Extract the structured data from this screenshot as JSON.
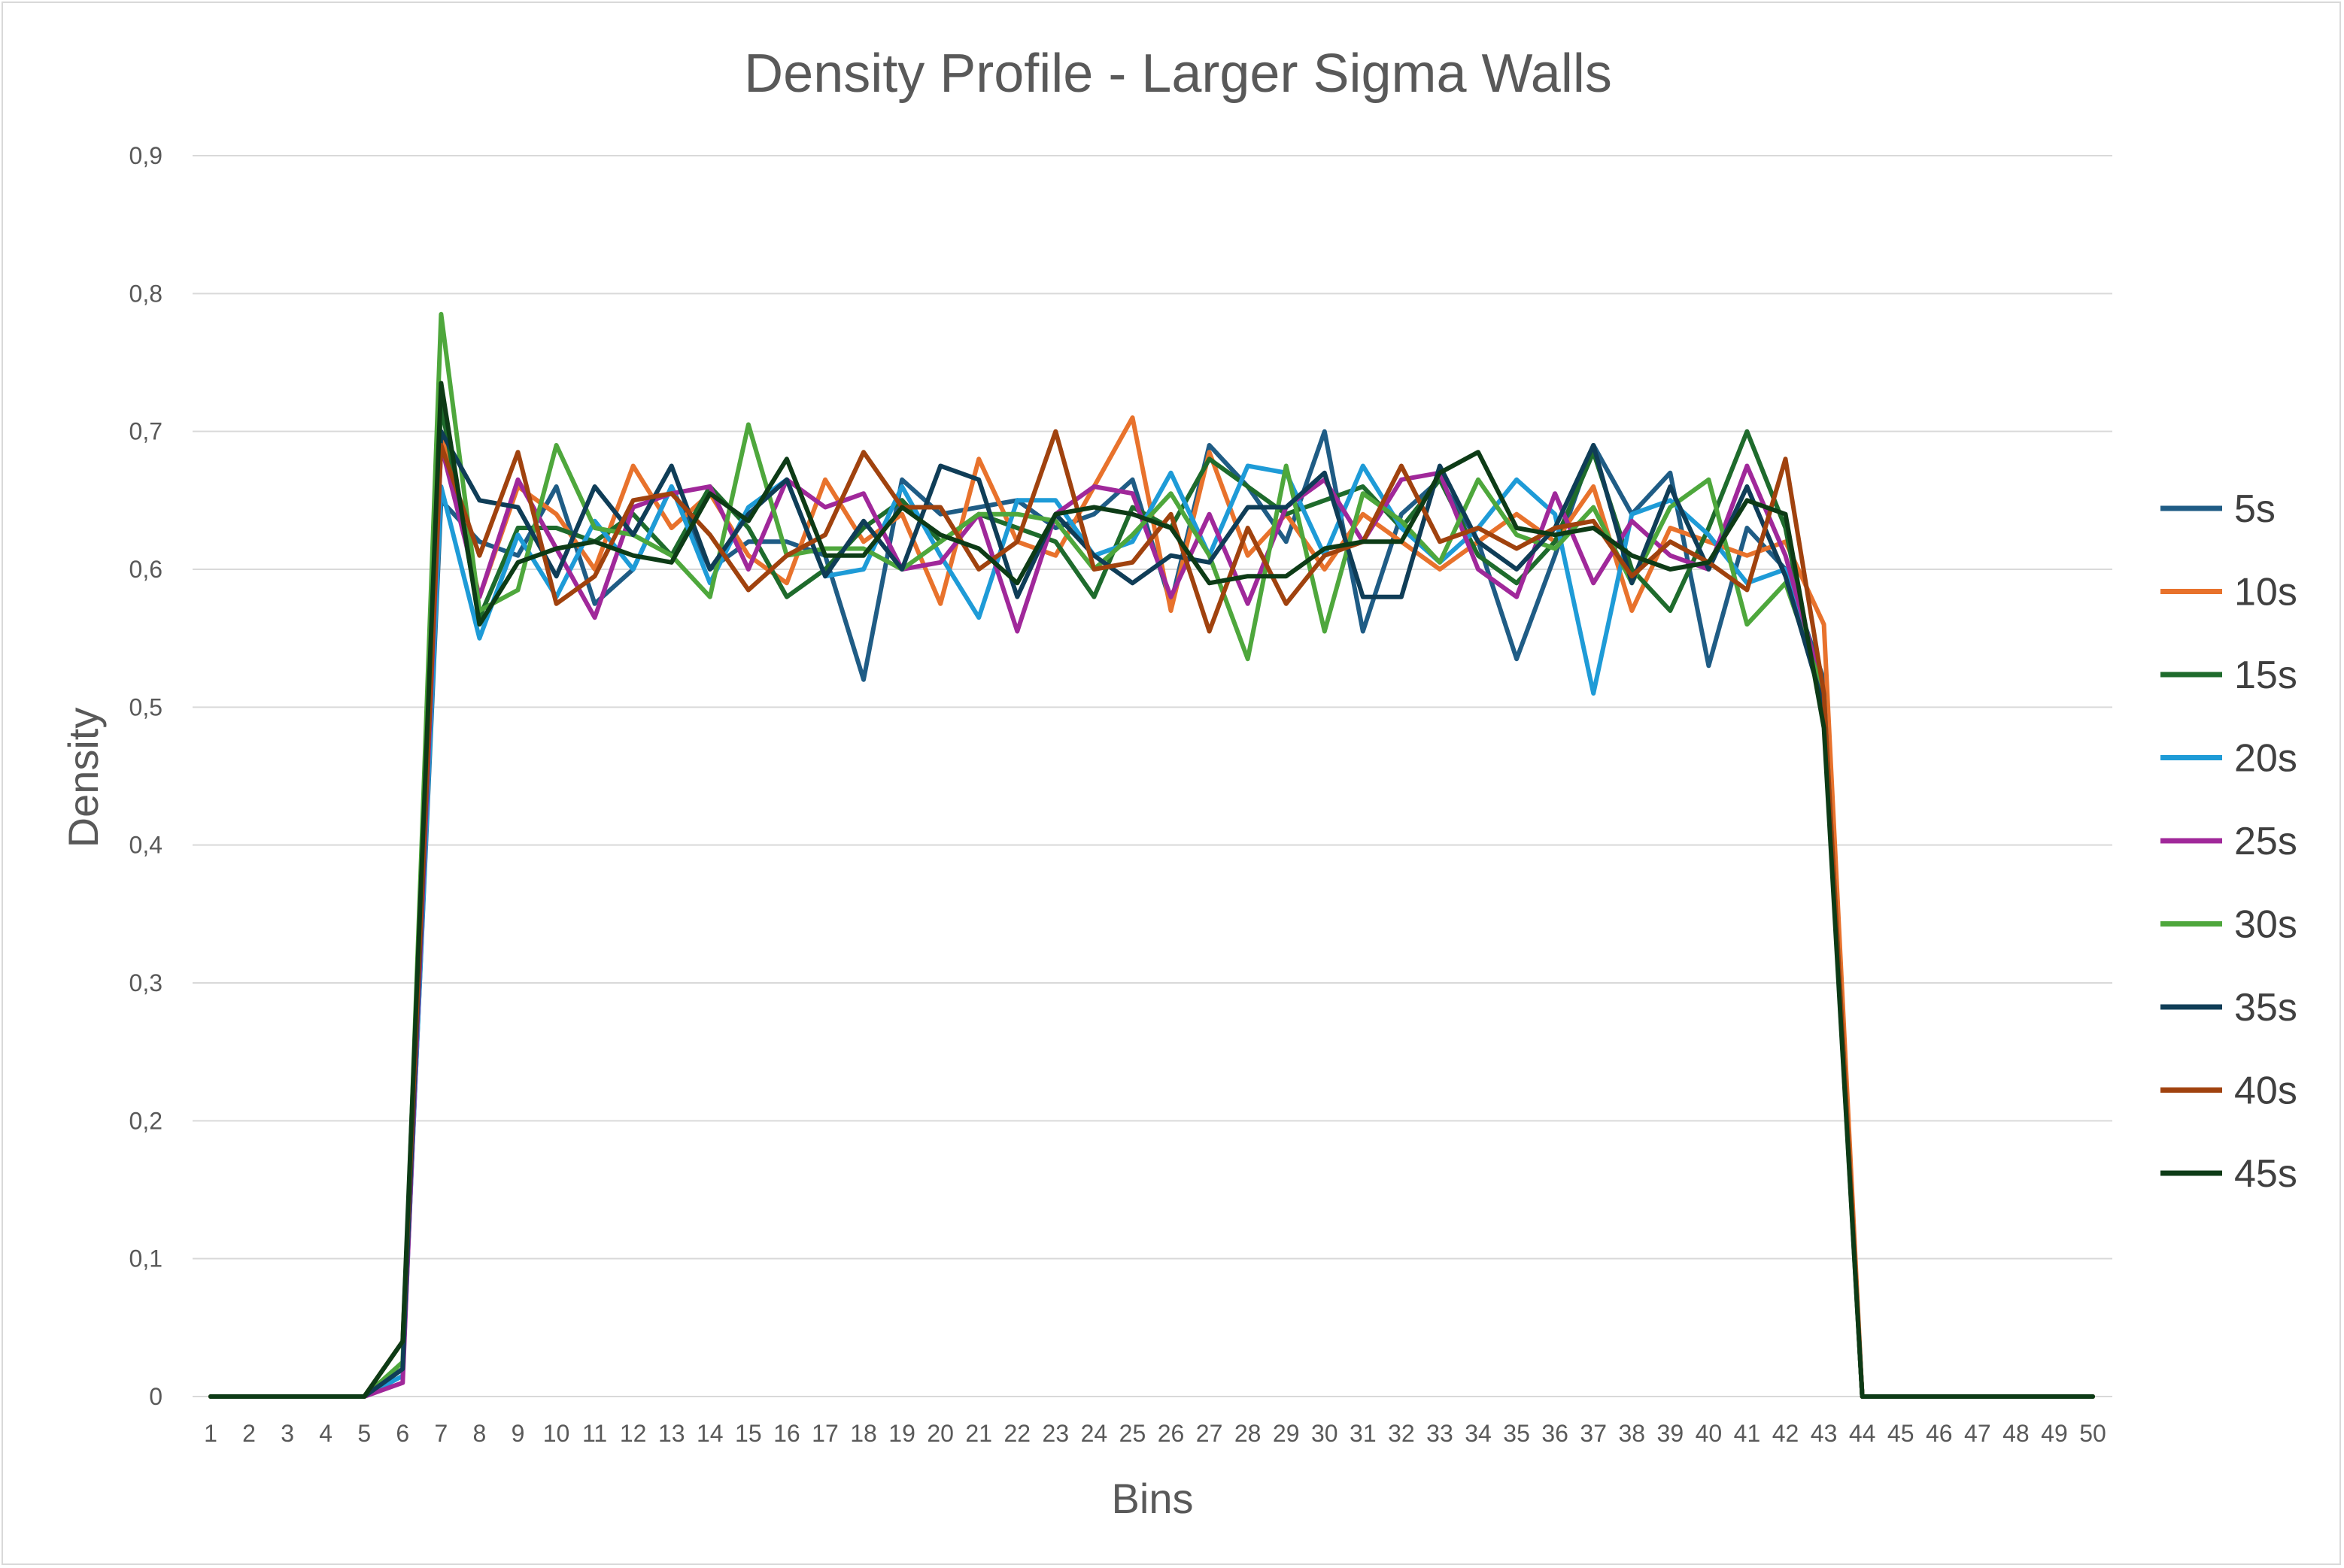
{
  "chart_data": {
    "type": "line",
    "title": "Density Profile - Larger Sigma Walls",
    "xlabel": "Bins",
    "ylabel": "Density",
    "ylim": [
      0,
      0.9
    ],
    "yticks": [
      "0",
      "0,1",
      "0,2",
      "0,3",
      "0,4",
      "0,5",
      "0,6",
      "0,7",
      "0,8",
      "0,9"
    ],
    "grid": "horizontal",
    "legend_position": "right",
    "categories": [
      "1",
      "2",
      "3",
      "4",
      "5",
      "6",
      "7",
      "8",
      "9",
      "10",
      "11",
      "12",
      "13",
      "14",
      "15",
      "16",
      "17",
      "18",
      "19",
      "20",
      "21",
      "22",
      "23",
      "24",
      "25",
      "26",
      "27",
      "28",
      "29",
      "30",
      "31",
      "32",
      "33",
      "34",
      "35",
      "36",
      "37",
      "38",
      "39",
      "40",
      "41",
      "42",
      "43",
      "44",
      "45",
      "46",
      "47",
      "48",
      "49",
      "50"
    ],
    "series": [
      {
        "name": "5s",
        "color": "#1f5c85",
        "values": [
          0,
          0,
          0,
          0,
          0,
          0.02,
          0.65,
          0.62,
          0.61,
          0.66,
          0.575,
          0.6,
          0.66,
          0.6,
          0.62,
          0.62,
          0.61,
          0.52,
          0.665,
          0.64,
          0.645,
          0.65,
          0.63,
          0.64,
          0.665,
          0.575,
          0.69,
          0.66,
          0.62,
          0.7,
          0.555,
          0.64,
          0.665,
          0.62,
          0.535,
          0.61,
          0.69,
          0.64,
          0.67,
          0.53,
          0.63,
          0.6,
          0.52,
          0,
          0,
          0,
          0,
          0,
          0,
          0
        ]
      },
      {
        "name": "10s",
        "color": "#e8722c",
        "values": [
          0,
          0,
          0,
          0,
          0,
          0.02,
          0.7,
          0.58,
          0.66,
          0.64,
          0.6,
          0.675,
          0.63,
          0.655,
          0.61,
          0.59,
          0.665,
          0.62,
          0.64,
          0.575,
          0.68,
          0.62,
          0.61,
          0.66,
          0.71,
          0.57,
          0.685,
          0.61,
          0.64,
          0.6,
          0.64,
          0.62,
          0.6,
          0.62,
          0.64,
          0.62,
          0.66,
          0.57,
          0.63,
          0.62,
          0.61,
          0.62,
          0.56,
          0,
          0,
          0,
          0,
          0,
          0,
          0
        ]
      },
      {
        "name": "15s",
        "color": "#1e6b2c",
        "values": [
          0,
          0,
          0,
          0,
          0,
          0.02,
          0.72,
          0.565,
          0.63,
          0.63,
          0.62,
          0.64,
          0.61,
          0.66,
          0.63,
          0.58,
          0.6,
          0.63,
          0.65,
          0.62,
          0.64,
          0.63,
          0.62,
          0.58,
          0.645,
          0.63,
          0.68,
          0.66,
          0.64,
          0.65,
          0.66,
          0.63,
          0.665,
          0.61,
          0.59,
          0.62,
          0.685,
          0.6,
          0.57,
          0.63,
          0.7,
          0.63,
          0.49,
          0,
          0,
          0,
          0,
          0,
          0,
          0
        ]
      },
      {
        "name": "20s",
        "color": "#1e9bd7",
        "values": [
          0,
          0,
          0,
          0,
          0,
          0.015,
          0.66,
          0.55,
          0.625,
          0.58,
          0.635,
          0.6,
          0.66,
          0.59,
          0.645,
          0.665,
          0.595,
          0.6,
          0.66,
          0.61,
          0.565,
          0.65,
          0.65,
          0.61,
          0.62,
          0.67,
          0.61,
          0.675,
          0.67,
          0.61,
          0.675,
          0.63,
          0.605,
          0.63,
          0.665,
          0.64,
          0.51,
          0.64,
          0.65,
          0.625,
          0.59,
          0.6,
          0.51,
          0,
          0,
          0,
          0,
          0,
          0,
          0
        ]
      },
      {
        "name": "25s",
        "color": "#a0289a",
        "values": [
          0,
          0,
          0,
          0,
          0,
          0.01,
          0.69,
          0.58,
          0.665,
          0.615,
          0.565,
          0.645,
          0.655,
          0.66,
          0.6,
          0.665,
          0.645,
          0.655,
          0.6,
          0.605,
          0.64,
          0.555,
          0.64,
          0.66,
          0.655,
          0.58,
          0.64,
          0.575,
          0.645,
          0.665,
          0.62,
          0.665,
          0.67,
          0.6,
          0.58,
          0.655,
          0.59,
          0.635,
          0.61,
          0.6,
          0.675,
          0.61,
          0.51,
          0,
          0,
          0,
          0,
          0,
          0,
          0
        ]
      },
      {
        "name": "30s",
        "color": "#4ea73c",
        "values": [
          0,
          0,
          0,
          0,
          0,
          0.025,
          0.785,
          0.57,
          0.585,
          0.69,
          0.63,
          0.625,
          0.61,
          0.58,
          0.705,
          0.61,
          0.615,
          0.615,
          0.6,
          0.62,
          0.64,
          0.64,
          0.635,
          0.6,
          0.625,
          0.655,
          0.61,
          0.535,
          0.675,
          0.555,
          0.655,
          0.635,
          0.605,
          0.665,
          0.625,
          0.615,
          0.645,
          0.59,
          0.645,
          0.665,
          0.56,
          0.59,
          0.51,
          0,
          0,
          0,
          0,
          0,
          0,
          0
        ]
      },
      {
        "name": "35s",
        "color": "#0f3d57",
        "values": [
          0,
          0,
          0,
          0,
          0,
          0.02,
          0.7,
          0.65,
          0.645,
          0.595,
          0.66,
          0.625,
          0.675,
          0.6,
          0.64,
          0.665,
          0.595,
          0.635,
          0.6,
          0.675,
          0.665,
          0.58,
          0.64,
          0.61,
          0.59,
          0.61,
          0.605,
          0.645,
          0.645,
          0.67,
          0.58,
          0.58,
          0.675,
          0.62,
          0.6,
          0.63,
          0.69,
          0.59,
          0.66,
          0.6,
          0.66,
          0.595,
          0.5,
          0,
          0,
          0,
          0,
          0,
          0,
          0
        ]
      },
      {
        "name": "40s",
        "color": "#a0420e",
        "values": [
          0,
          0,
          0,
          0,
          0,
          0.04,
          0.69,
          0.61,
          0.685,
          0.575,
          0.595,
          0.65,
          0.655,
          0.625,
          0.585,
          0.61,
          0.625,
          0.685,
          0.645,
          0.645,
          0.6,
          0.62,
          0.7,
          0.6,
          0.605,
          0.64,
          0.555,
          0.63,
          0.575,
          0.61,
          0.62,
          0.675,
          0.62,
          0.63,
          0.615,
          0.63,
          0.635,
          0.595,
          0.62,
          0.605,
          0.585,
          0.68,
          0.51,
          0,
          0,
          0,
          0,
          0,
          0,
          0
        ]
      },
      {
        "name": "45s",
        "color": "#0d3b16",
        "values": [
          0,
          0,
          0,
          0,
          0,
          0.04,
          0.735,
          0.56,
          0.605,
          0.615,
          0.62,
          0.61,
          0.605,
          0.655,
          0.635,
          0.68,
          0.61,
          0.61,
          0.645,
          0.625,
          0.615,
          0.59,
          0.64,
          0.645,
          0.64,
          0.63,
          0.59,
          0.595,
          0.595,
          0.615,
          0.62,
          0.62,
          0.67,
          0.685,
          0.63,
          0.625,
          0.63,
          0.61,
          0.6,
          0.605,
          0.65,
          0.64,
          0.485,
          0,
          0,
          0,
          0,
          0,
          0,
          0
        ]
      }
    ]
  }
}
